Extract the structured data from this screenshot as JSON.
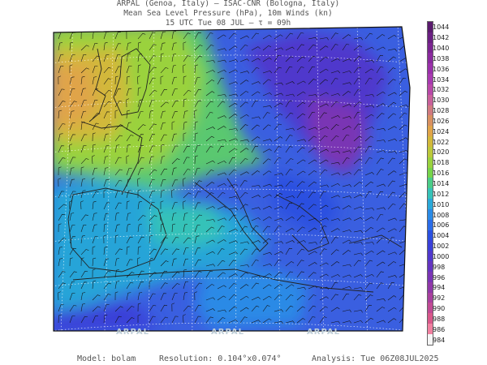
{
  "header": {
    "line1": "ARPAL (Genoa, Italy)  –  ISAC-CNR (Bologna, Italy)",
    "line2": "Mean Sea Level Pressure (hPa), 10m Winds (kn)",
    "line3": "15 UTC Tue 08 JUL  –  τ = 09h"
  },
  "colorbar": {
    "labels": [
      "1044",
      "1042",
      "1040",
      "1038",
      "1036",
      "1034",
      "1032",
      "1030",
      "1028",
      "1026",
      "1024",
      "1022",
      "1020",
      "1018",
      "1016",
      "1014",
      "1012",
      "1010",
      "1008",
      "1006",
      "1004",
      "1002",
      "1000",
      "998",
      "996",
      "994",
      "992",
      "990",
      "988",
      "986",
      "984"
    ],
    "colors": [
      "#5a1a6e",
      "#6a1f82",
      "#7a2490",
      "#8a2a9e",
      "#9a30aa",
      "#a83ab0",
      "#b848a8",
      "#c8609a",
      "#d07a80",
      "#d89060",
      "#e0a448",
      "#d2b83a",
      "#bcc83a",
      "#9ad23e",
      "#76d44a",
      "#4acc88",
      "#36c2b8",
      "#2aa8d8",
      "#2a8ae6",
      "#2a6ce8",
      "#2a50e0",
      "#3a40d8",
      "#5038cc",
      "#6434c0",
      "#7a34b4",
      "#9038a8",
      "#a8409e",
      "#c04a94",
      "#d8588a",
      "#f080a0",
      "#f6f6f6"
    ]
  },
  "watermarks": [
    "ARPAL",
    "ARPAL",
    "ARPAL"
  ],
  "footer": {
    "model": "Model: bolam",
    "resolution": "Resolution: 0.104°x0.074°",
    "analysis": "Analysis: Tue 06Z08JUL2025"
  }
}
